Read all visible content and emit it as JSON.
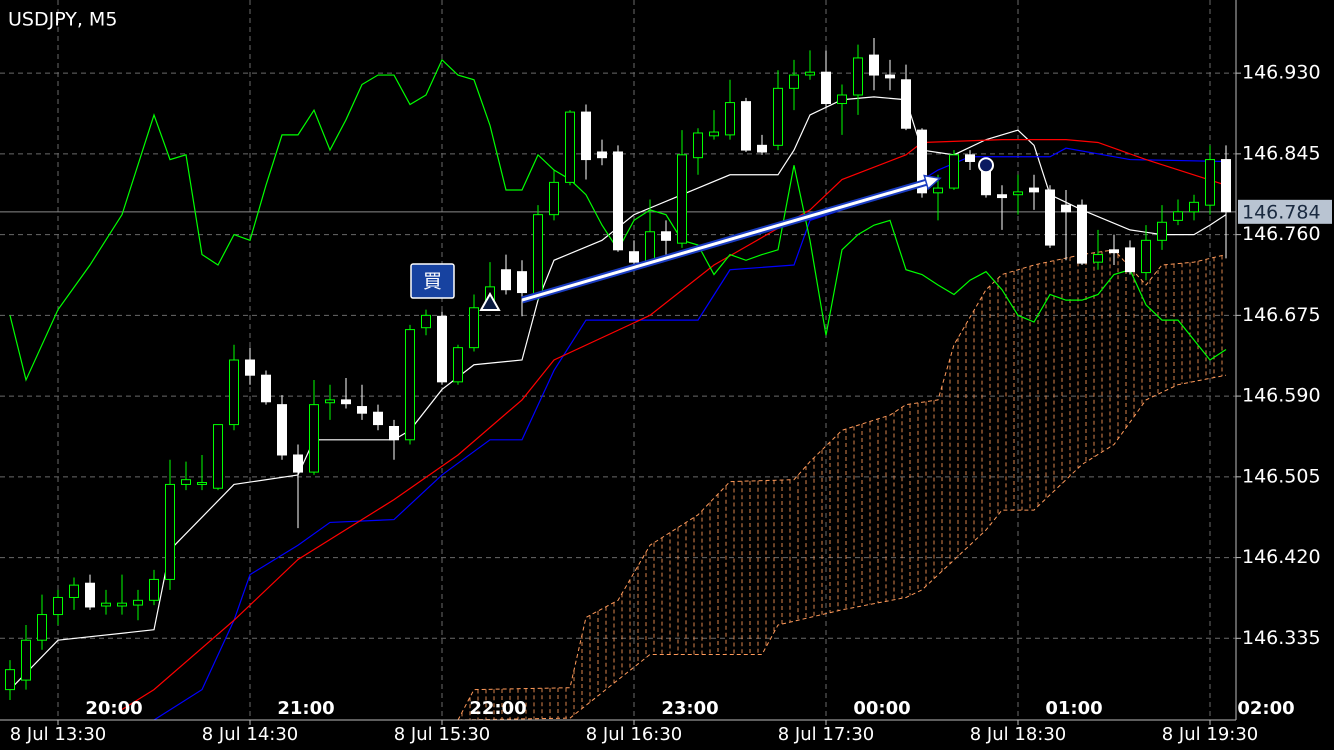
{
  "chart_data": {
    "type": "candlestick",
    "title": "USDJPY, M5",
    "ylim": [
      146.249,
      147.007
    ],
    "xlim": [
      -0.625,
      76.625
    ],
    "yticks": [
      {
        "value": 146.93,
        "label": "146.930"
      },
      146.845,
      {
        "value": 146.76,
        "label": "146.760"
      },
      146.675,
      {
        "value": 146.59,
        "label": "146.590"
      },
      146.505,
      {
        "value": 146.42,
        "label": "146.420"
      },
      146.335
    ],
    "xticks": [
      {
        "value": 3,
        "label": "8 Jul 13:30"
      },
      {
        "value": 15,
        "label": "8 Jul 14:30"
      },
      {
        "value": 27,
        "label": "8 Jul 15:30"
      },
      {
        "value": 39,
        "label": "8 Jul 16:30"
      },
      {
        "value": 51,
        "label": "8 Jul 17:30"
      },
      {
        "value": 63,
        "label": "8 Jul 18:30"
      },
      {
        "value": 75,
        "label": "8 Jul 19:30"
      }
    ],
    "x2ticks": [
      {
        "value": 6.5,
        "label": "20:00"
      },
      {
        "value": 18.5,
        "label": "21:00"
      },
      {
        "value": 30.5,
        "label": "22:00"
      },
      {
        "value": 42.5,
        "label": "23:00"
      },
      {
        "value": 54.5,
        "label": "00:00"
      },
      {
        "value": 66.5,
        "label": "01:00"
      },
      {
        "value": 78.5,
        "label": "02:00"
      }
    ],
    "grid": true,
    "up_color": "#00ff00",
    "down_color": "#ffffff",
    "current_price": 146.784,
    "open": [
      146.281,
      146.291,
      146.333,
      146.36,
      146.378,
      146.393,
      146.369,
      146.369,
      146.37,
      146.375,
      146.397,
      146.497,
      146.497,
      146.493,
      146.56,
      146.628,
      146.612,
      146.581,
      146.528,
      146.51,
      146.583,
      146.586,
      146.579,
      146.573,
      146.558,
      146.544,
      146.662,
      146.674,
      146.605,
      146.641,
      146.683,
      146.723,
      146.721,
      146.697,
      146.781,
      146.815,
      146.889,
      146.847,
      146.847,
      146.742,
      146.731,
      146.763,
      146.751,
      146.841,
      146.864,
      146.865,
      146.9,
      146.854,
      146.854,
      146.914,
      146.928,
      146.931,
      146.898,
      146.907,
      146.949,
      146.928,
      146.923,
      146.87,
      146.804,
      146.809,
      146.844,
      146.826,
      146.802,
      146.802,
      146.809,
      146.807,
      146.791,
      146.791,
      146.731,
      146.744,
      146.746,
      146.72,
      146.754,
      146.775,
      146.784,
      146.791,
      146.839
    ],
    "high": [
      146.312,
      146.349,
      146.381,
      146.386,
      146.399,
      146.402,
      146.386,
      146.402,
      146.386,
      146.407,
      146.523,
      146.521,
      146.528,
      146.56,
      146.644,
      146.641,
      146.617,
      146.591,
      146.539,
      146.607,
      146.602,
      146.609,
      146.602,
      146.581,
      146.565,
      146.665,
      146.681,
      146.679,
      146.644,
      146.697,
      146.731,
      146.739,
      146.733,
      146.791,
      146.828,
      146.891,
      146.897,
      146.86,
      146.854,
      146.754,
      146.797,
      146.775,
      146.87,
      146.872,
      146.891,
      146.923,
      146.904,
      146.865,
      146.933,
      146.944,
      146.954,
      146.954,
      146.918,
      146.96,
      146.967,
      146.944,
      146.939,
      146.872,
      146.823,
      146.849,
      146.849,
      146.833,
      146.812,
      146.823,
      146.823,
      146.812,
      146.807,
      146.797,
      146.765,
      146.76,
      146.754,
      146.77,
      146.791,
      146.797,
      146.802,
      146.854,
      146.854
    ],
    "low": [
      146.27,
      146.281,
      146.323,
      146.349,
      146.365,
      146.365,
      146.36,
      146.36,
      146.354,
      146.37,
      146.386,
      146.491,
      146.491,
      146.491,
      146.554,
      146.602,
      146.581,
      146.523,
      146.451,
      146.507,
      146.565,
      146.577,
      146.565,
      146.554,
      146.523,
      146.539,
      146.654,
      146.602,
      146.602,
      146.637,
      146.681,
      146.697,
      146.674,
      146.691,
      146.775,
      146.812,
      146.818,
      146.833,
      146.742,
      146.723,
      146.728,
      146.735,
      146.746,
      146.823,
      146.86,
      146.86,
      146.847,
      146.844,
      146.849,
      146.891,
      146.923,
      146.893,
      146.865,
      146.886,
      146.912,
      146.912,
      146.87,
      146.799,
      146.775,
      146.807,
      146.828,
      146.799,
      146.765,
      146.781,
      146.786,
      146.746,
      146.733,
      146.728,
      146.723,
      146.728,
      146.718,
      146.712,
      146.744,
      146.77,
      146.775,
      146.781,
      146.735
    ],
    "close": [
      146.302,
      146.333,
      146.36,
      146.378,
      146.391,
      146.368,
      146.372,
      146.372,
      146.375,
      146.397,
      146.497,
      146.502,
      146.499,
      146.56,
      146.628,
      146.612,
      146.584,
      146.528,
      146.51,
      146.581,
      146.586,
      146.582,
      146.572,
      146.56,
      146.544,
      146.66,
      146.675,
      146.605,
      146.641,
      146.683,
      146.705,
      146.702,
      146.699,
      146.781,
      146.815,
      146.889,
      146.839,
      146.841,
      146.744,
      146.731,
      146.763,
      146.754,
      146.844,
      146.867,
      146.868,
      146.899,
      146.849,
      146.847,
      146.914,
      146.928,
      146.931,
      146.898,
      146.907,
      146.946,
      146.928,
      146.925,
      146.872,
      146.804,
      146.809,
      146.844,
      146.837,
      146.802,
      146.799,
      146.805,
      146.805,
      146.749,
      146.784,
      146.73,
      146.739,
      146.741,
      146.721,
      146.754,
      146.773,
      146.784,
      146.794,
      146.839,
      146.784
    ],
    "lines": [
      {
        "color": "#ffffff",
        "x": [
          0,
          3,
          9,
          10,
          14,
          18,
          19,
          24,
          25,
          27,
          29,
          32,
          33,
          34,
          37,
          39,
          42,
          45,
          48,
          49,
          50,
          52,
          54,
          56,
          57,
          59,
          61,
          63,
          64,
          65,
          67,
          70,
          72,
          74,
          75,
          76
        ],
        "values": [
          146.281,
          146.333,
          146.344,
          146.428,
          146.497,
          146.507,
          146.544,
          146.544,
          146.554,
          146.597,
          146.623,
          146.628,
          146.691,
          146.733,
          146.754,
          146.781,
          146.802,
          146.823,
          146.823,
          146.849,
          146.886,
          146.902,
          146.905,
          146.902,
          146.849,
          146.844,
          146.86,
          146.87,
          146.854,
          146.802,
          146.786,
          146.765,
          146.76,
          146.76,
          146.77,
          146.781
        ]
      },
      {
        "color": "#0000ff",
        "x": [
          9,
          12,
          14,
          15,
          18,
          20,
          24,
          27,
          30,
          32,
          34,
          36,
          43,
          45,
          49,
          50,
          52,
          56,
          58,
          60,
          65,
          66,
          70,
          76
        ],
        "values": [
          146.249,
          146.281,
          146.354,
          146.402,
          146.433,
          146.457,
          146.46,
          146.507,
          146.544,
          146.544,
          146.617,
          146.67,
          146.67,
          146.723,
          146.728,
          146.775,
          146.786,
          146.807,
          146.828,
          146.842,
          146.842,
          146.851,
          146.839,
          146.837
        ]
      },
      {
        "color": "#ff0000",
        "x": [
          7,
          9,
          14,
          18,
          24,
          28,
          32,
          34,
          40,
          44,
          50,
          52,
          56,
          57,
          62,
          66,
          68,
          71,
          76
        ],
        "values": [
          146.26,
          146.281,
          146.354,
          146.418,
          146.481,
          146.528,
          146.586,
          146.628,
          146.675,
          146.728,
          146.786,
          146.818,
          146.844,
          146.857,
          146.86,
          146.86,
          146.857,
          146.839,
          146.812
        ]
      },
      {
        "color": "#00ff00",
        "x": [
          0,
          1,
          3,
          5,
          7,
          9,
          10,
          11,
          12,
          13,
          14,
          15,
          16,
          17,
          18,
          19,
          20,
          21,
          22,
          23,
          24,
          25,
          26,
          27,
          28,
          29,
          30,
          31,
          32,
          33,
          34,
          35,
          36,
          37,
          38,
          39,
          40,
          41,
          42,
          43,
          44,
          45,
          46,
          47,
          48,
          49,
          50,
          51,
          52,
          53,
          54,
          55,
          56,
          57,
          58,
          59,
          60,
          61,
          62,
          63,
          64,
          65,
          66,
          67,
          68,
          69,
          70,
          71,
          72,
          73,
          74,
          75,
          76
        ],
        "values": [
          146.675,
          146.607,
          146.681,
          146.728,
          146.781,
          146.886,
          146.839,
          146.844,
          146.739,
          146.728,
          146.76,
          146.754,
          146.812,
          146.865,
          146.865,
          146.891,
          146.849,
          146.881,
          146.918,
          146.928,
          146.928,
          146.897,
          146.907,
          146.944,
          146.928,
          146.923,
          146.875,
          146.807,
          146.807,
          146.844,
          146.828,
          146.818,
          146.802,
          146.77,
          146.744,
          146.775,
          146.786,
          146.781,
          146.754,
          146.749,
          146.718,
          146.739,
          146.733,
          146.739,
          146.744,
          146.833,
          146.754,
          146.654,
          146.744,
          146.76,
          146.77,
          146.775,
          146.723,
          146.718,
          146.707,
          146.697,
          146.712,
          146.721,
          146.702,
          146.675,
          146.668,
          146.697,
          146.691,
          146.691,
          146.697,
          146.718,
          146.723,
          146.686,
          146.67,
          146.67,
          146.649,
          146.628,
          146.639
        ]
      }
    ],
    "cloud": {
      "color": "#ff9a5a",
      "upper": {
        "x": [
          28,
          29,
          35,
          36,
          38,
          40,
          43,
          45,
          49,
          50,
          52,
          55,
          56,
          58,
          59,
          61,
          62,
          64,
          67,
          69,
          71,
          72,
          74,
          76
        ],
        "values": [
          146.249,
          146.281,
          146.283,
          146.357,
          146.375,
          146.433,
          146.465,
          146.5,
          146.502,
          146.521,
          146.554,
          146.57,
          146.581,
          146.586,
          146.644,
          146.702,
          146.718,
          146.728,
          146.739,
          146.744,
          146.707,
          146.728,
          146.731,
          146.739
        ]
      },
      "lower": {
        "x": [
          28,
          35,
          40,
          47,
          48,
          52,
          56,
          57,
          61,
          62,
          64,
          67,
          69,
          71,
          73,
          76
        ],
        "values": [
          146.249,
          146.251,
          146.318,
          146.318,
          146.349,
          146.365,
          146.378,
          146.386,
          146.449,
          146.47,
          146.47,
          146.518,
          146.539,
          146.586,
          146.602,
          146.612
        ]
      }
    },
    "trade": {
      "label": "買",
      "entry_x": 30,
      "entry_price": 146.688,
      "exit_x": 61,
      "exit_price": 146.833
    }
  }
}
